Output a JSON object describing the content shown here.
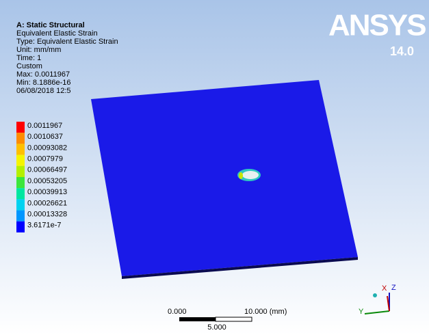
{
  "header": {
    "title": "A: Static Structural",
    "lines": [
      "Equivalent Elastic Strain",
      "Type: Equivalent Elastic Strain",
      "Unit: mm/mm",
      "Time: 1",
      "Custom",
      "Max: 0.0011967",
      "Min: 8.1886e-16",
      "06/08/2018 12:5"
    ]
  },
  "legend": {
    "levels": [
      {
        "label": "0.0011967",
        "color": "#ff0000"
      },
      {
        "label": "0.0010637",
        "color": "#ff8c00"
      },
      {
        "label": "0.00093082",
        "color": "#ffc000"
      },
      {
        "label": "0.0007979",
        "color": "#f5f500"
      },
      {
        "label": "0.00066497",
        "color": "#b4f000"
      },
      {
        "label": "0.00053205",
        "color": "#3ce63c"
      },
      {
        "label": "0.00039913",
        "color": "#00e6a0"
      },
      {
        "label": "0.00026621",
        "color": "#00d2f0"
      },
      {
        "label": "0.00013328",
        "color": "#0096ff"
      },
      {
        "label": "3.6171e-7",
        "color": "#0000ff"
      }
    ]
  },
  "logo": {
    "brand": "ANSYS",
    "version": "14.0"
  },
  "scale_bar": {
    "left": "0.000",
    "right": "10.000 (mm)",
    "middle": "5.000"
  },
  "triad": {
    "x": "X",
    "y": "Y",
    "z": "Z"
  }
}
